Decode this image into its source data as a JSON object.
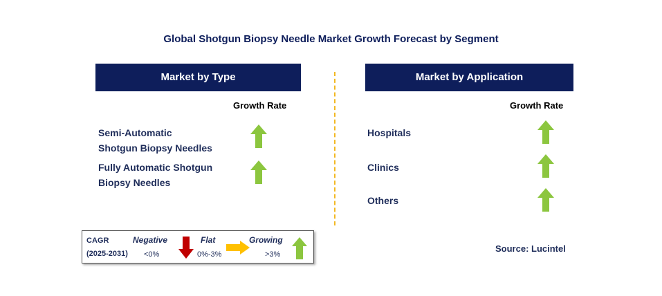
{
  "title": "Global Shotgun Biopsy Needle Market Growth Forecast by Segment",
  "left_panel": {
    "header": "Market by Type",
    "growth_rate_label": "Growth Rate",
    "items": [
      {
        "line1": "Semi-Automatic",
        "line2": "Shotgun Biopsy Needles",
        "trend": "growing"
      },
      {
        "line1": "Fully Automatic Shotgun",
        "line2": "Biopsy Needles",
        "trend": "growing"
      }
    ]
  },
  "right_panel": {
    "header": "Market by Application",
    "growth_rate_label": "Growth Rate",
    "items": [
      {
        "label": "Hospitals",
        "trend": "growing"
      },
      {
        "label": "Clinics",
        "trend": "growing"
      },
      {
        "label": "Others",
        "trend": "growing"
      }
    ]
  },
  "legend": {
    "cagr_label": "CAGR",
    "period": "(2025-2031)",
    "negative_label": "Negative",
    "negative_range": "<0%",
    "flat_label": "Flat",
    "flat_range": "0%-3%",
    "growing_label": "Growing",
    "growing_range": ">3%"
  },
  "source": "Source: Lucintel",
  "colors": {
    "header_bg": "#0e1e5b",
    "growing_arrow": "#8cc63f",
    "flat_arrow": "#ffc000",
    "negative_arrow": "#c00000",
    "divider": "#f2b822"
  },
  "icons": {
    "growing": "up-arrow-icon",
    "flat": "right-arrow-icon",
    "negative": "down-arrow-icon"
  }
}
